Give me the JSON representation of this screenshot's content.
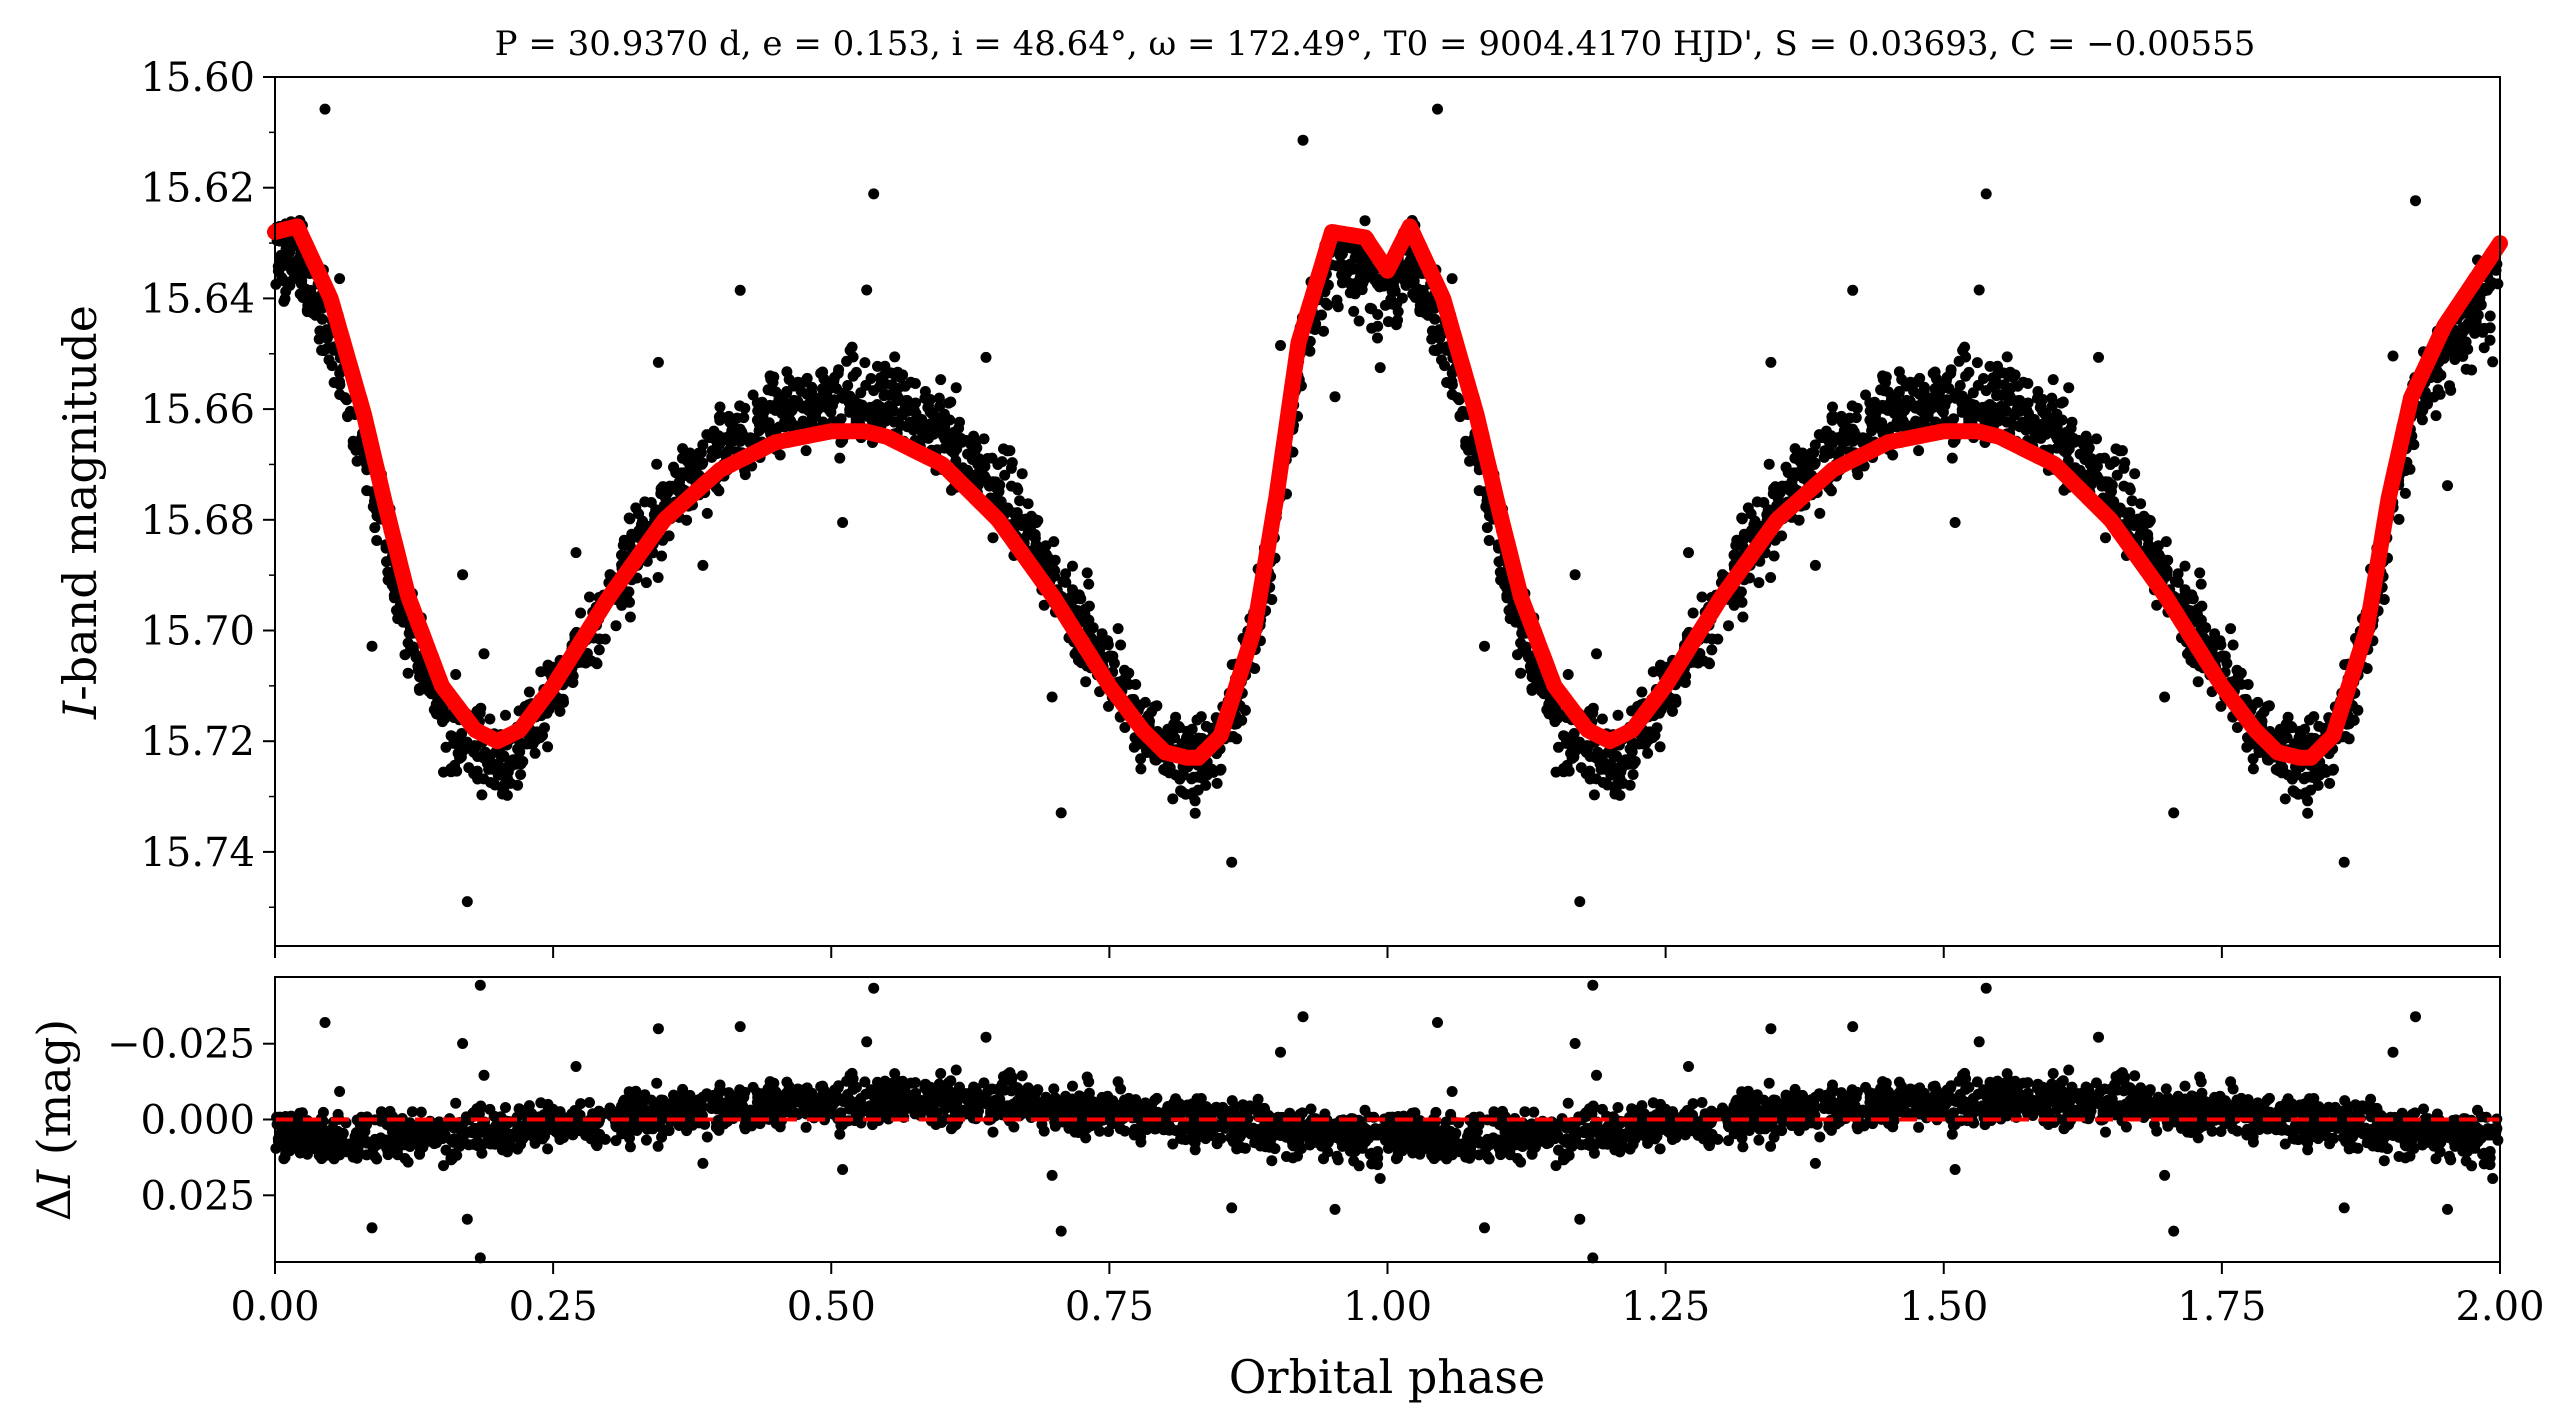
{
  "chart_data": [
    {
      "type": "scatter",
      "panel": "light-curve",
      "title": "P = 30.9370 d, e = 0.153, i = 48.64°, ω = 172.49°, T0 = 9004.4170 HJD', S = 0.03693, C = −0.00555",
      "title_parts": {
        "P": "30.9370 d",
        "e": "0.153",
        "i": "48.64°",
        "omega": "172.49°",
        "T0": "9004.4170 HJD'",
        "S": "0.03693",
        "C": "−0.00555"
      },
      "xlabel": "Orbital phase",
      "ylabel_italic": "I",
      "ylabel_rest": "-band magnitude",
      "xlim": [
        0.0,
        2.0
      ],
      "ylim": [
        15.757,
        15.6
      ],
      "y_inverted": true,
      "yticks": [
        "15.60",
        "15.62",
        "15.64",
        "15.66",
        "15.68",
        "15.70",
        "15.72",
        "15.74"
      ],
      "ytick_values": [
        15.6,
        15.62,
        15.64,
        15.66,
        15.68,
        15.7,
        15.72,
        15.74
      ],
      "series": [
        {
          "name": "observations",
          "style": "black points",
          "color": "#000000",
          "description_points": "scatter of observed I magnitudes folded on phase, repeated over two cycles"
        },
        {
          "name": "model",
          "style": "thick red line",
          "color": "#ff0000",
          "x": [
            0.0,
            0.02,
            0.05,
            0.08,
            0.1,
            0.12,
            0.15,
            0.18,
            0.2,
            0.22,
            0.25,
            0.3,
            0.35,
            0.4,
            0.45,
            0.5,
            0.53,
            0.55,
            0.6,
            0.65,
            0.7,
            0.75,
            0.78,
            0.8,
            0.82,
            0.83,
            0.85,
            0.88,
            0.9,
            0.92,
            0.95,
            0.98,
            1.0,
            1.02,
            1.05,
            1.08,
            1.1,
            1.12,
            1.15,
            1.18,
            1.2,
            1.22,
            1.25,
            1.3,
            1.35,
            1.4,
            1.45,
            1.5,
            1.53,
            1.55,
            1.6,
            1.65,
            1.7,
            1.75,
            1.78,
            1.8,
            1.82,
            1.83,
            1.85,
            1.88,
            1.9,
            1.92,
            1.95,
            1.98,
            2.0
          ],
          "y": [
            15.628,
            15.627,
            15.64,
            15.661,
            15.678,
            15.694,
            15.71,
            15.718,
            15.72,
            15.718,
            15.71,
            15.694,
            15.68,
            15.671,
            15.666,
            15.664,
            15.664,
            15.665,
            15.67,
            15.68,
            15.694,
            15.71,
            15.718,
            15.722,
            15.723,
            15.723,
            15.719,
            15.7,
            15.676,
            15.648,
            15.628,
            15.629,
            15.635,
            15.627,
            15.64,
            15.661,
            15.678,
            15.694,
            15.71,
            15.718,
            15.72,
            15.718,
            15.71,
            15.694,
            15.68,
            15.671,
            15.666,
            15.664,
            15.664,
            15.665,
            15.67,
            15.68,
            15.694,
            15.71,
            15.718,
            15.722,
            15.723,
            15.723,
            15.719,
            15.7,
            15.676,
            15.658,
            15.645,
            15.636,
            15.63
          ]
        }
      ]
    },
    {
      "type": "scatter",
      "panel": "residuals",
      "xlabel": "Orbital phase",
      "ylabel": "ΔI (mag)",
      "ylabel_delta": "Δ",
      "ylabel_italic": "I",
      "ylabel_rest": " (mag)",
      "xlim": [
        0.0,
        2.0
      ],
      "ylim": [
        0.047,
        -0.047
      ],
      "y_inverted": true,
      "yticks": [
        "−0.025",
        "0.000",
        "0.025"
      ],
      "ytick_values": [
        -0.025,
        0.0,
        0.025
      ],
      "xticks": [
        "0.00",
        "0.25",
        "0.50",
        "0.75",
        "1.00",
        "1.25",
        "1.50",
        "1.75",
        "2.00"
      ],
      "xtick_values": [
        0.0,
        0.25,
        0.5,
        0.75,
        1.0,
        1.25,
        1.5,
        1.75,
        2.0
      ],
      "reference_line": {
        "y": 0.0,
        "style": "dashed",
        "color": "#ff0000"
      },
      "series": [
        {
          "name": "residuals",
          "style": "black points",
          "color": "#000000"
        }
      ]
    }
  ],
  "colors": {
    "points": "#000000",
    "model": "#ff0000",
    "zero_line": "#ff0000",
    "axes": "#000000"
  }
}
